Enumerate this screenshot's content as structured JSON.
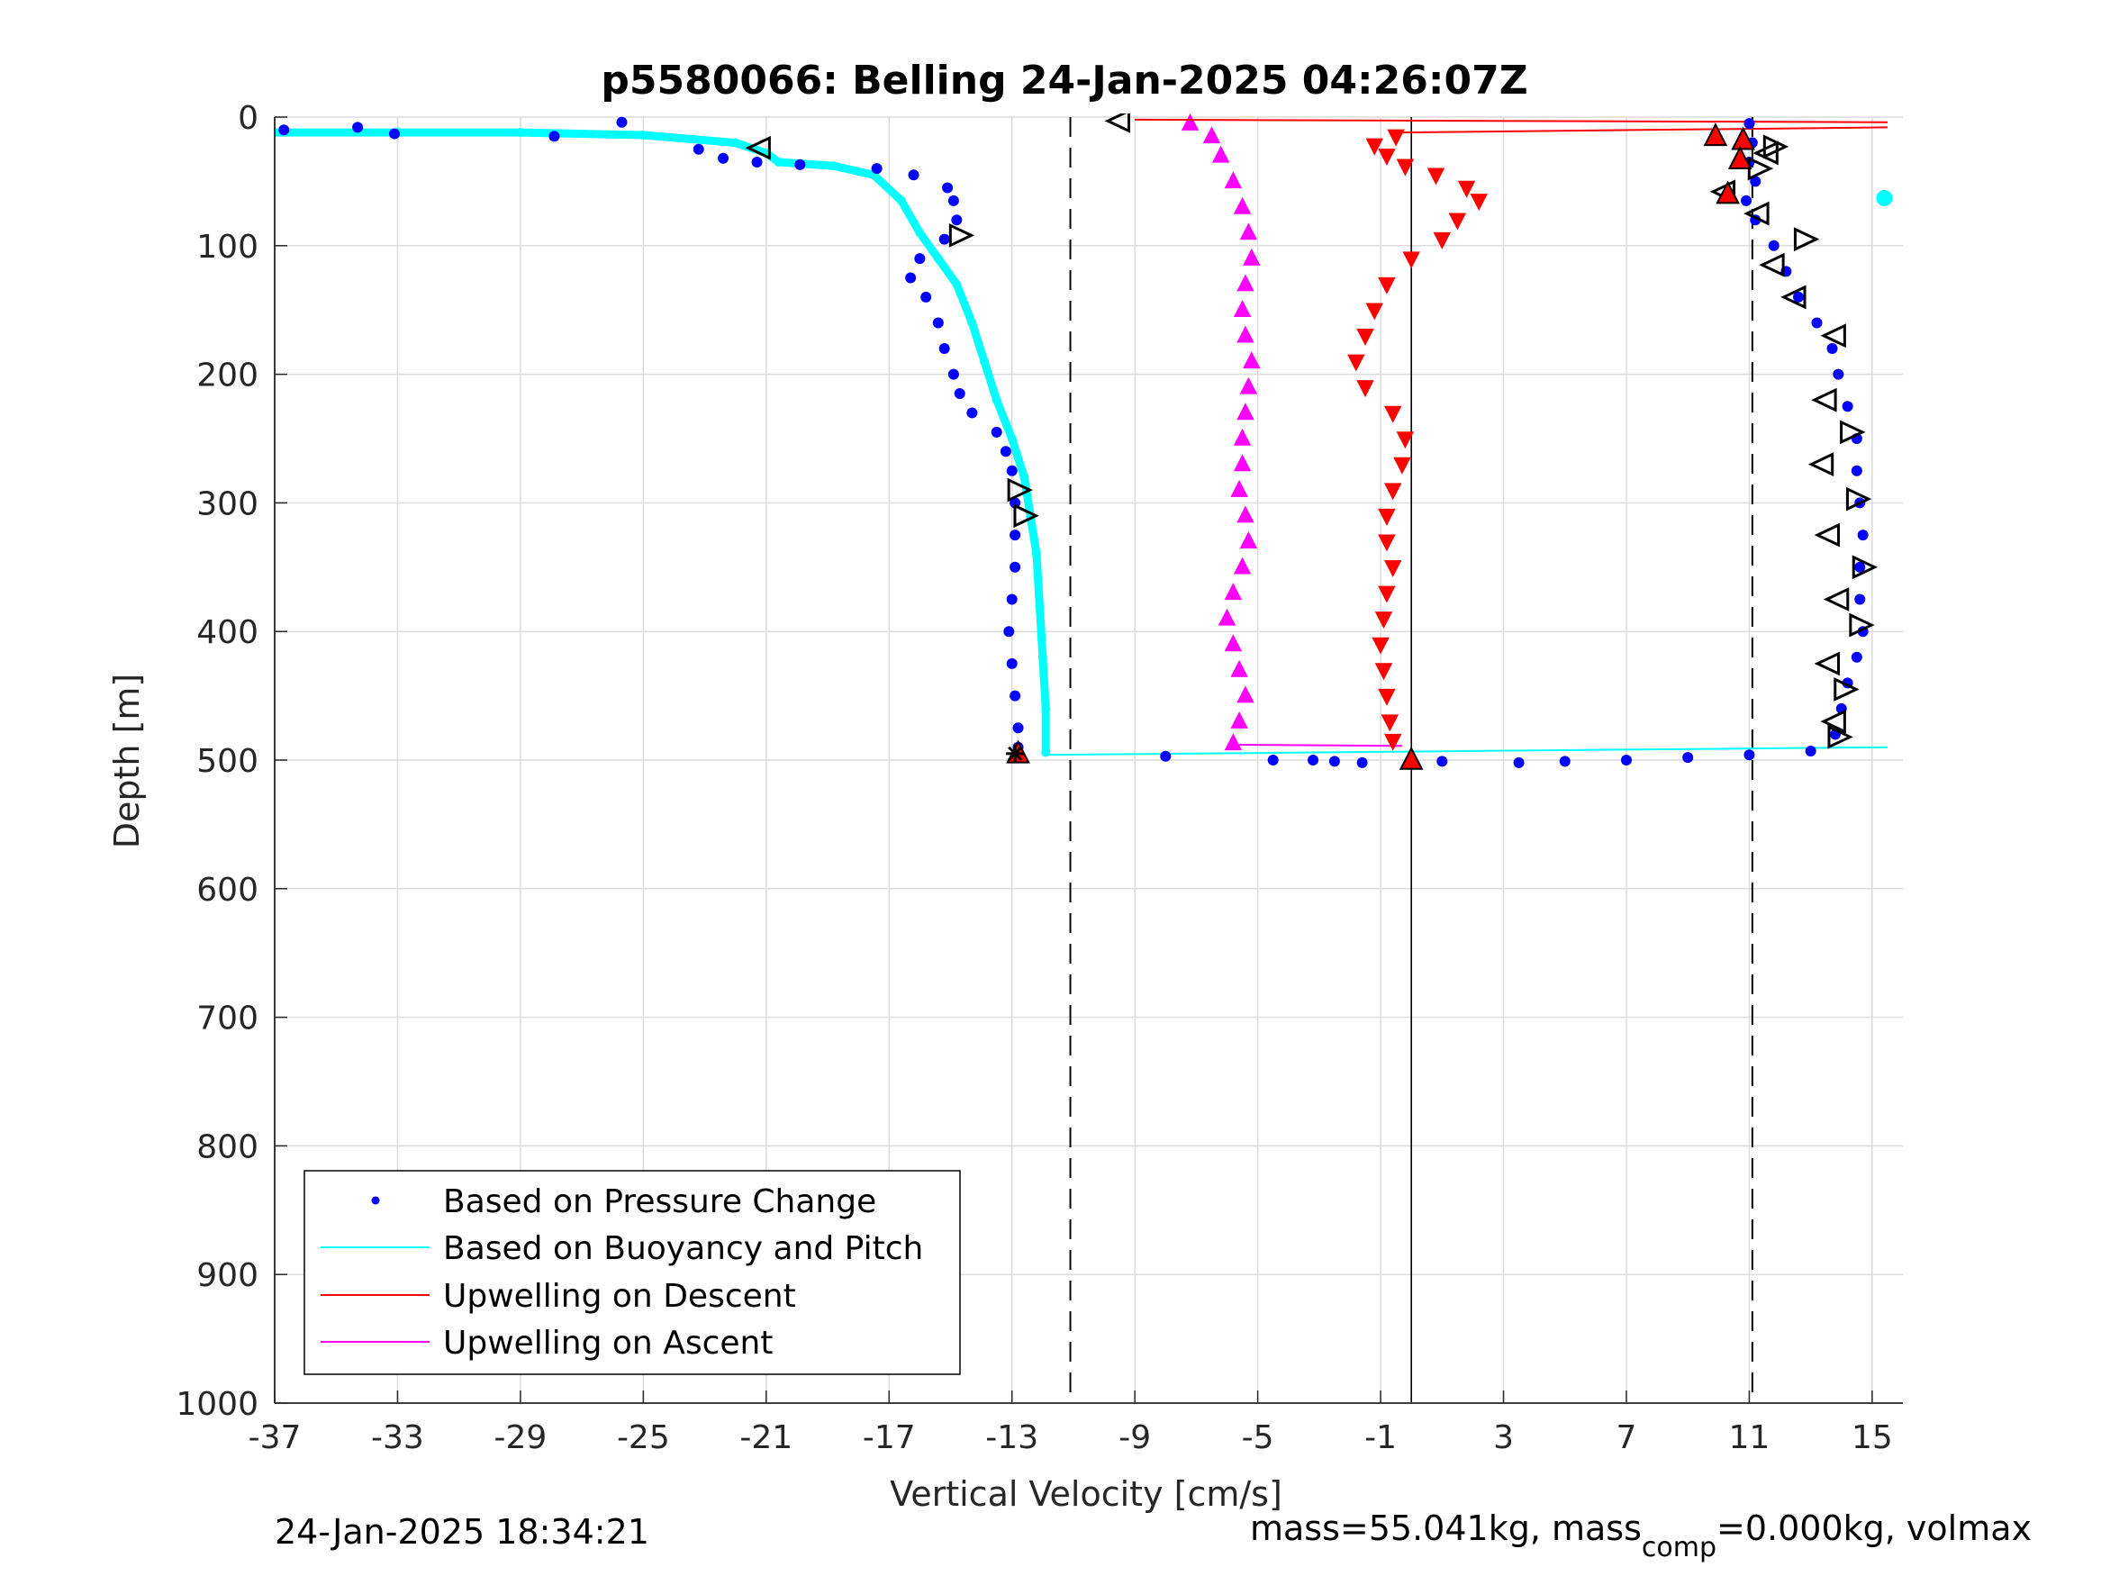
{
  "footer": {
    "timestamp": "24-Jan-2025 18:34:21",
    "mass_text": "mass=55.041kg, mass",
    "comp_sub": "comp",
    "mass_rest": "=0.000kg, volmax"
  },
  "chart_data": {
    "type": "scatter",
    "title": "p5580066: Belling 24-Jan-2025 04:26:07Z",
    "xlabel": "Vertical Velocity [cm/s]",
    "ylabel": "Depth [m]",
    "xlim": [
      -37,
      16
    ],
    "ylim": [
      0,
      1000
    ],
    "y_reversed": true,
    "grid": true,
    "x_ticks": [
      "-37",
      "-33",
      "-29",
      "-25",
      "-21",
      "-17",
      "-13",
      "-9",
      "-5",
      "-1",
      "3",
      "7",
      "11",
      "15"
    ],
    "y_ticks": [
      "0",
      "100",
      "200",
      "300",
      "400",
      "500",
      "600",
      "700",
      "800",
      "900",
      "1000"
    ],
    "legend_position": "bottom-left",
    "legend": [
      {
        "label": "Based on Pressure Change",
        "color": "#0000ff",
        "style": "dot"
      },
      {
        "label": "Based on Buoyancy and Pitch",
        "color": "#00ffff",
        "style": "line"
      },
      {
        "label": "Upwelling on Descent",
        "color": "#ff0000",
        "style": "line"
      },
      {
        "label": "Upwelling on Ascent",
        "color": "#ff00ff",
        "style": "line"
      }
    ],
    "reference_lines": {
      "dashed_x": [
        -11.1,
        11.1
      ],
      "solid_x": [
        0.0
      ]
    },
    "series": [
      {
        "name": "Based on Pressure Change",
        "color": "#0000ff",
        "marker": "dot",
        "profiles": [
          {
            "leg": "descent",
            "points": [
              [
                -36.7,
                10
              ],
              [
                -34.3,
                8
              ],
              [
                -33.1,
                13
              ],
              [
                -27.9,
                15
              ],
              [
                -25.7,
                4
              ],
              [
                -23.2,
                25
              ],
              [
                -22.4,
                32
              ],
              [
                -21.3,
                35
              ],
              [
                -19.9,
                37
              ],
              [
                -17.4,
                40
              ],
              [
                -16.2,
                45
              ],
              [
                -15.1,
                55
              ],
              [
                -14.9,
                65
              ],
              [
                -14.8,
                80
              ],
              [
                -15.2,
                95
              ],
              [
                -16.0,
                110
              ],
              [
                -16.3,
                125
              ],
              [
                -15.8,
                140
              ],
              [
                -15.4,
                160
              ],
              [
                -15.2,
                180
              ],
              [
                -14.9,
                200
              ],
              [
                -14.7,
                215
              ],
              [
                -14.3,
                230
              ],
              [
                -13.5,
                245
              ],
              [
                -13.2,
                260
              ],
              [
                -13.0,
                275
              ],
              [
                -12.9,
                300
              ],
              [
                -12.9,
                325
              ],
              [
                -12.9,
                350
              ],
              [
                -13.0,
                375
              ],
              [
                -13.1,
                400
              ],
              [
                -13.0,
                425
              ],
              [
                -12.9,
                450
              ],
              [
                -12.8,
                475
              ],
              [
                -12.8,
                490
              ],
              [
                -12.9,
                498
              ]
            ]
          },
          {
            "leg": "bottom",
            "points": [
              [
                -8.0,
                497
              ],
              [
                -4.5,
                500
              ],
              [
                -3.2,
                500
              ],
              [
                -2.5,
                501
              ],
              [
                -1.6,
                502
              ],
              [
                1.0,
                501
              ],
              [
                3.5,
                502
              ],
              [
                5.0,
                501
              ],
              [
                7.0,
                500
              ],
              [
                9.0,
                498
              ],
              [
                11.0,
                496
              ],
              [
                13.0,
                493
              ]
            ]
          },
          {
            "leg": "ascent",
            "points": [
              [
                13.8,
                480
              ],
              [
                14.0,
                460
              ],
              [
                14.2,
                440
              ],
              [
                14.5,
                420
              ],
              [
                14.7,
                400
              ],
              [
                14.6,
                375
              ],
              [
                14.6,
                350
              ],
              [
                14.7,
                325
              ],
              [
                14.6,
                300
              ],
              [
                14.5,
                275
              ],
              [
                14.5,
                250
              ],
              [
                14.2,
                225
              ],
              [
                13.9,
                200
              ],
              [
                13.7,
                180
              ],
              [
                13.2,
                160
              ],
              [
                12.6,
                140
              ],
              [
                12.2,
                120
              ],
              [
                11.8,
                100
              ],
              [
                11.2,
                80
              ],
              [
                10.9,
                65
              ],
              [
                11.2,
                50
              ],
              [
                11.0,
                35
              ],
              [
                11.1,
                20
              ],
              [
                11.0,
                5
              ]
            ]
          }
        ]
      },
      {
        "name": "Based on Buoyancy and Pitch",
        "color": "#00ffff",
        "marker": "line",
        "points": [
          [
            -37,
            12
          ],
          [
            -33,
            12
          ],
          [
            -29,
            12
          ],
          [
            -25,
            14
          ],
          [
            -22,
            20
          ],
          [
            -21,
            28
          ],
          [
            -20.6,
            35
          ],
          [
            -18.8,
            38
          ],
          [
            -17.5,
            45
          ],
          [
            -16.6,
            65
          ],
          [
            -16.0,
            90
          ],
          [
            -15.4,
            110
          ],
          [
            -14.8,
            130
          ],
          [
            -14.3,
            160
          ],
          [
            -13.9,
            190
          ],
          [
            -13.5,
            220
          ],
          [
            -13.0,
            250
          ],
          [
            -12.6,
            280
          ],
          [
            -12.4,
            310
          ],
          [
            -12.2,
            340
          ],
          [
            -12.1,
            380
          ],
          [
            -12.0,
            420
          ],
          [
            -11.9,
            460
          ],
          [
            -11.9,
            494
          ]
        ],
        "bottom_line": [
          [
            -12.0,
            496
          ],
          [
            15.5,
            490
          ]
        ],
        "surface_blob": [
          15.4,
          63
        ]
      },
      {
        "name": "Upwelling on Descent",
        "color": "#ff0000",
        "marker": "triangle-down",
        "points": [
          [
            -0.5,
            15
          ],
          [
            -1.2,
            22
          ],
          [
            -0.8,
            30
          ],
          [
            -0.2,
            38
          ],
          [
            0.8,
            45
          ],
          [
            1.8,
            55
          ],
          [
            2.2,
            65
          ],
          [
            1.5,
            80
          ],
          [
            1.0,
            95
          ],
          [
            0.0,
            110
          ],
          [
            -0.8,
            130
          ],
          [
            -1.2,
            150
          ],
          [
            -1.5,
            170
          ],
          [
            -1.8,
            190
          ],
          [
            -1.5,
            210
          ],
          [
            -0.6,
            230
          ],
          [
            -0.2,
            250
          ],
          [
            -0.3,
            270
          ],
          [
            -0.6,
            290
          ],
          [
            -0.8,
            310
          ],
          [
            -0.8,
            330
          ],
          [
            -0.6,
            350
          ],
          [
            -0.8,
            370
          ],
          [
            -0.9,
            390
          ],
          [
            -1.0,
            410
          ],
          [
            -0.9,
            430
          ],
          [
            -0.8,
            450
          ],
          [
            -0.7,
            470
          ],
          [
            -0.6,
            485
          ]
        ],
        "surface_lines": [
          [
            [
              -9.0,
              2
            ],
            [
              15.5,
              4
            ]
          ],
          [
            [
              -0.3,
              12
            ],
            [
              15.5,
              8
            ]
          ]
        ]
      },
      {
        "name": "Upwelling on Ascent",
        "color": "#ff00ff",
        "marker": "triangle-up",
        "points": [
          [
            -5.8,
            487
          ],
          [
            -5.6,
            470
          ],
          [
            -5.4,
            450
          ],
          [
            -5.6,
            430
          ],
          [
            -5.8,
            410
          ],
          [
            -6.0,
            390
          ],
          [
            -5.8,
            370
          ],
          [
            -5.5,
            350
          ],
          [
            -5.3,
            330
          ],
          [
            -5.4,
            310
          ],
          [
            -5.6,
            290
          ],
          [
            -5.5,
            270
          ],
          [
            -5.5,
            250
          ],
          [
            -5.4,
            230
          ],
          [
            -5.3,
            210
          ],
          [
            -5.2,
            190
          ],
          [
            -5.4,
            170
          ],
          [
            -5.5,
            150
          ],
          [
            -5.4,
            130
          ],
          [
            -5.2,
            110
          ],
          [
            -5.3,
            90
          ],
          [
            -5.5,
            70
          ],
          [
            -5.8,
            50
          ],
          [
            -6.2,
            30
          ],
          [
            -6.5,
            15
          ],
          [
            -7.2,
            5
          ]
        ],
        "bottom_line": [
          [
            -5.8,
            488
          ],
          [
            -0.3,
            489
          ]
        ]
      }
    ],
    "annotations": {
      "open_triangles_left": [
        [
          -21.2,
          24
        ],
        [
          -9.5,
          3
        ],
        [
          13.8,
          170
        ],
        [
          13.5,
          220
        ],
        [
          13.4,
          270
        ],
        [
          13.6,
          325
        ],
        [
          13.9,
          375
        ],
        [
          13.6,
          425
        ],
        [
          13.8,
          470
        ],
        [
          12.5,
          140
        ],
        [
          11.8,
          115
        ],
        [
          10.2,
          58
        ],
        [
          11.6,
          28
        ],
        [
          11.3,
          75
        ]
      ],
      "open_triangles_right": [
        [
          -14.7,
          92
        ],
        [
          -12.8,
          290
        ],
        [
          -12.6,
          310
        ],
        [
          14.3,
          245
        ],
        [
          14.5,
          297
        ],
        [
          14.7,
          350
        ],
        [
          14.6,
          395
        ],
        [
          14.1,
          445
        ],
        [
          13.9,
          482
        ],
        [
          12.8,
          95
        ],
        [
          11.8,
          23
        ],
        [
          11.3,
          40
        ]
      ],
      "red_triangles_up": [
        [
          9.9,
          15
        ],
        [
          10.8,
          18
        ],
        [
          10.7,
          33
        ],
        [
          10.3,
          60
        ],
        [
          -12.8,
          495
        ],
        [
          0.0,
          500
        ]
      ],
      "black_star": [
        -12.9,
        495
      ]
    }
  }
}
